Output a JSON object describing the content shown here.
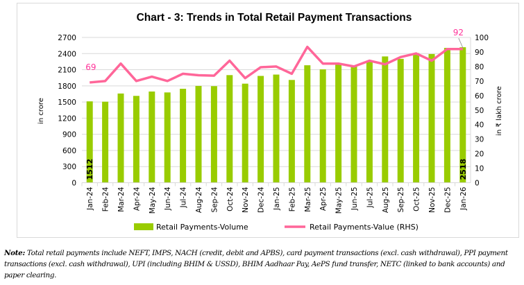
{
  "chart_data": {
    "type": "bar+line",
    "title": "Chart - 3: Trends in Total Retail Payment Transactions",
    "categories": [
      "Jan-24",
      "Feb-24",
      "Mar-24",
      "Apr-24",
      "May-24",
      "Jun-24",
      "Jul-24",
      "Aug-24",
      "Sep-24",
      "Oct-24",
      "Nov-24",
      "Dec-24",
      "Jan-25",
      "Feb-25",
      "Mar-25",
      "Apr-25",
      "May-25",
      "Jun-25",
      "Jul-25",
      "Aug-25",
      "Sep-25",
      "Oct-25",
      "Nov-25",
      "Dec-25",
      "Jan-26"
    ],
    "series": [
      {
        "name": "Retail Payments-Volume",
        "type": "bar",
        "axis": "left",
        "color": "#99cc00",
        "values": [
          1512,
          1506,
          1658,
          1614,
          1695,
          1678,
          1746,
          1799,
          1795,
          2000,
          1841,
          1985,
          2010,
          1910,
          2183,
          2107,
          2210,
          2169,
          2244,
          2347,
          2302,
          2410,
          2392,
          2506,
          2518
        ]
      },
      {
        "name": "Retail Payments-Value (RHS)",
        "type": "line",
        "axis": "right",
        "color": "#ff6699",
        "values": [
          69,
          70,
          82,
          70,
          73,
          70,
          75,
          74,
          73.7,
          84,
          72,
          79.5,
          80,
          75,
          93.5,
          82,
          82,
          80,
          84,
          81.5,
          86.5,
          89,
          84,
          92,
          92
        ]
      }
    ],
    "data_labels": {
      "bar_first": "1512",
      "bar_last": "2518",
      "line_first": "69",
      "line_last": "92"
    },
    "ylabel_left": "in crore",
    "ylabel_right": "in ₹ lakh crore",
    "ylim_left": [
      0,
      2700
    ],
    "yticks_left": [
      "0",
      "300",
      "600",
      "900",
      "1200",
      "1500",
      "1800",
      "2100",
      "2400",
      "2700"
    ],
    "ylim_right": [
      0,
      100
    ],
    "yticks_right": [
      "0",
      "10",
      "20",
      "30",
      "40",
      "50",
      "60",
      "70",
      "80",
      "90",
      "100"
    ],
    "grid": true,
    "legend_position": "bottom"
  },
  "note": {
    "label": "Note:",
    "text": " Total retail payments include NEFT, IMPS, NACH (credit, debit and APBS), card payment transactions (excl. cash withdrawal), PPI payment transactions (excl. cash withdrawal), UPI (including BHIM & USSD), BHIM Aadhaar Pay, AePS fund transfer, NETC (linked to bank accounts) and paper clearing."
  }
}
